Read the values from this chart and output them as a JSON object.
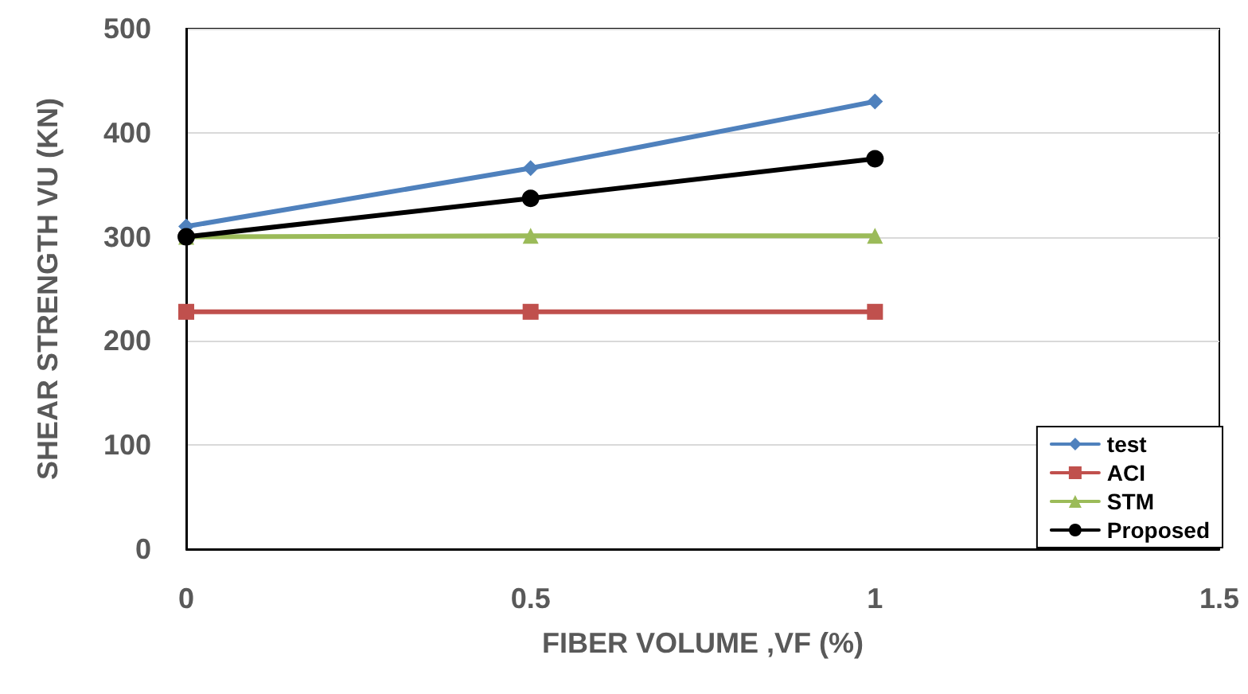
{
  "chart_data": {
    "type": "line",
    "xlabel": "FIBER VOLUME ,VF (%)",
    "ylabel": "SHEAR STRENGTH VU (KN)",
    "x": [
      0,
      0.5,
      1
    ],
    "series": [
      {
        "name": "test",
        "color": "#4f81bd",
        "values": [
          310,
          366,
          430
        ],
        "marker": "diamond"
      },
      {
        "name": "ACI",
        "color": "#c0504d",
        "values": [
          228,
          228,
          228
        ],
        "marker": "square"
      },
      {
        "name": "STM",
        "color": "#9bbb59",
        "values": [
          300,
          301,
          301
        ],
        "marker": "triangle"
      },
      {
        "name": "Proposed",
        "color": "#000000",
        "values": [
          300,
          337,
          375
        ],
        "marker": "circle"
      }
    ],
    "xlim": [
      0,
      1.5
    ],
    "xticks": [
      0,
      0.5,
      1,
      1.5
    ],
    "ylim": [
      0,
      500
    ],
    "yticks": [
      0,
      100,
      200,
      300,
      400,
      500
    ],
    "grid": "y",
    "legend": "bottom right"
  }
}
